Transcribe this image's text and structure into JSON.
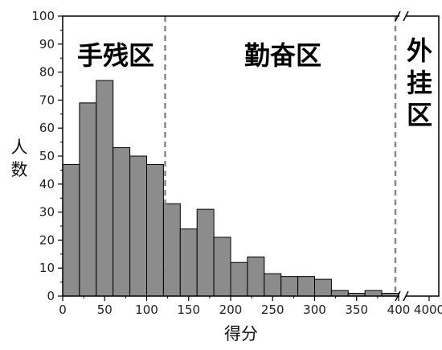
{
  "chart_data": {
    "type": "bar",
    "xlabel": "得分",
    "ylabel": "人数",
    "ylim": [
      0,
      100
    ],
    "xlim_main": [
      0,
      400
    ],
    "xlim_break": [
      400,
      4000
    ],
    "axis_break": true,
    "grid": false,
    "bin_width": 20,
    "bins_start": [
      0,
      20,
      40,
      60,
      80,
      100,
      120,
      140,
      160,
      180,
      200,
      220,
      240,
      260,
      280,
      300,
      320,
      340,
      360,
      380
    ],
    "values": [
      47,
      69,
      77,
      53,
      50,
      47,
      33,
      24,
      31,
      21,
      12,
      14,
      8,
      7,
      7,
      6,
      2,
      1,
      2,
      1
    ],
    "bar_color": "#8c8c8c",
    "x_ticks": [
      "0",
      "50",
      "100",
      "150",
      "200",
      "250",
      "300",
      "350",
      "400",
      "4000"
    ],
    "y_ticks": [
      "0",
      "10",
      "20",
      "30",
      "40",
      "50",
      "60",
      "70",
      "80",
      "90",
      "100"
    ],
    "dividers": [
      122,
      400
    ],
    "regions": [
      {
        "label": "手残区"
      },
      {
        "label": "勤奋区"
      },
      {
        "label": "外挂区"
      }
    ]
  }
}
